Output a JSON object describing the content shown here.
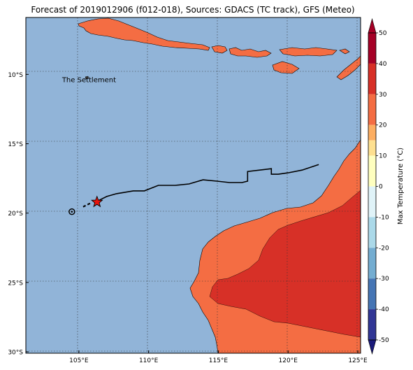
{
  "title": "Forecast of 2019012906 (f012-018), Sources: GDACS (TC track), GFS (Meteo)",
  "map": {
    "lon_range": [
      101.2,
      125.2
    ],
    "lat_range": [
      -30.1,
      -5.9
    ],
    "x_ticks": [
      {
        "value": 105,
        "label": "105°E"
      },
      {
        "value": 110,
        "label": "110°E"
      },
      {
        "value": 115,
        "label": "115°E"
      },
      {
        "value": 120,
        "label": "120°E"
      },
      {
        "value": 125,
        "label": "125°E"
      }
    ],
    "y_ticks": [
      {
        "value": -10,
        "label": "10°S"
      },
      {
        "value": -15,
        "label": "15°S"
      },
      {
        "value": -20,
        "label": "20°S"
      },
      {
        "value": -25,
        "label": "25°S"
      },
      {
        "value": -30,
        "label": "30°S"
      }
    ],
    "grid": "dotted",
    "ocean_color": "#91b4d8",
    "annotation": {
      "text": "The Settlement",
      "lon": 105.7,
      "lat": -10.4
    }
  },
  "track": {
    "points": [
      [
        122.2,
        -16.5
      ],
      [
        121.0,
        -16.9
      ],
      [
        120.0,
        -17.1
      ],
      [
        119.3,
        -17.2
      ],
      [
        118.8,
        -17.2
      ],
      [
        118.8,
        -16.8
      ],
      [
        117.1,
        -17.0
      ],
      [
        117.1,
        -17.7
      ],
      [
        116.7,
        -17.8
      ],
      [
        115.8,
        -17.8
      ],
      [
        114.9,
        -17.7
      ],
      [
        113.9,
        -17.6
      ],
      [
        112.9,
        -17.9
      ],
      [
        111.9,
        -18.0
      ],
      [
        110.7,
        -18.0
      ],
      [
        109.7,
        -18.4
      ],
      [
        108.9,
        -18.4
      ],
      [
        107.7,
        -18.6
      ],
      [
        107.0,
        -18.8
      ],
      [
        106.4,
        -19.1
      ]
    ],
    "dashed_segment": [
      [
        105.8,
        -19.3
      ],
      [
        105.2,
        -19.6
      ]
    ],
    "current_position": {
      "lon": 106.3,
      "lat": -19.2,
      "marker": "star",
      "color": "#e8140e"
    },
    "start_circle": {
      "lon": 104.5,
      "lat": -19.9
    }
  },
  "colorbar": {
    "label": "Max Temperature (°C)",
    "ticks": [
      50,
      40,
      30,
      20,
      10,
      0,
      -10,
      -20,
      -30,
      -40,
      -50
    ],
    "colors": [
      {
        "from": 50,
        "to": 40,
        "color": "#a50026"
      },
      {
        "from": 40,
        "to": 30,
        "color": "#d73027"
      },
      {
        "from": 30,
        "to": 20,
        "color": "#f46d43"
      },
      {
        "from": 20,
        "to": 15,
        "color": "#fdae61"
      },
      {
        "from": 15,
        "to": 10,
        "color": "#fee090"
      },
      {
        "from": 10,
        "to": 0,
        "color": "#ffffbf"
      },
      {
        "from": 0,
        "to": -10,
        "color": "#e0f3f8"
      },
      {
        "from": -10,
        "to": -20,
        "color": "#abd9e9"
      },
      {
        "from": -20,
        "to": -30,
        "color": "#74add1"
      },
      {
        "from": -30,
        "to": -40,
        "color": "#4575b4"
      },
      {
        "from": -40,
        "to": -50,
        "color": "#313695"
      }
    ],
    "top_arrow_color": "#a50026",
    "bottom_arrow_color": "#1a1a7a"
  },
  "land_colors": {
    "warm": "#f46d43",
    "hot": "#d73027"
  }
}
